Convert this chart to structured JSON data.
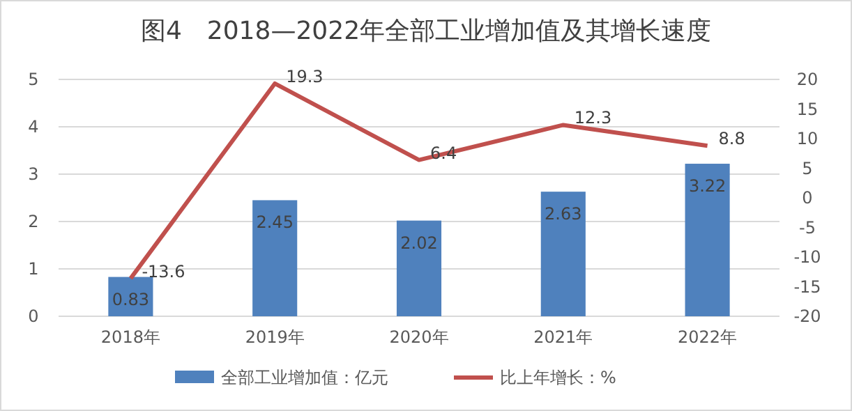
{
  "chart_data": {
    "type": "bar",
    "title": "图4　2018—2022年全部工业增加值及其增长速度",
    "categories": [
      "2018年",
      "2019年",
      "2020年",
      "2021年",
      "2022年"
    ],
    "series": [
      {
        "name": "全部工业增加值：亿元",
        "color": "#4f81bd",
        "values": [
          0.83,
          2.45,
          2.02,
          2.63,
          3.22
        ]
      },
      {
        "name": "比上年增长：%",
        "type": "line",
        "axis": "y2",
        "color": "#c0504d",
        "values": [
          -13.6,
          19.3,
          6.4,
          12.3,
          8.8
        ]
      }
    ],
    "ylim": [
      0,
      5
    ],
    "yticks": [
      0,
      1,
      2,
      3,
      4,
      5
    ],
    "y2lim": [
      -20,
      20
    ],
    "y2ticks": [
      -20,
      -15,
      -10,
      -5,
      0,
      5,
      10,
      15,
      20
    ],
    "grid": "y",
    "legend": "bottom",
    "data_labels": true,
    "marker": "none"
  }
}
